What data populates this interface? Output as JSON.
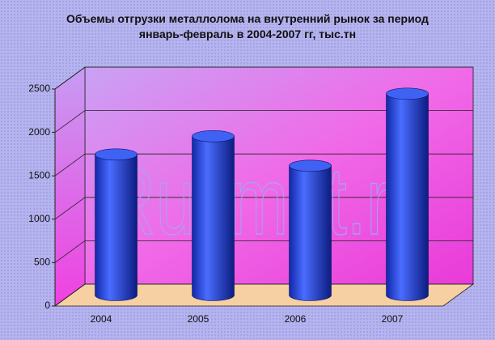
{
  "chart_data": {
    "type": "bar3d",
    "title": "Объемы отгрузки металлолома на внутренний рынок за период январь-февраль в 2004-2007 гг, тыс.тн",
    "watermark": "Rusmet.ru",
    "categories": [
      "2004",
      "2005",
      "2006",
      "2007"
    ],
    "values": [
      1620,
      1830,
      1490,
      2320
    ],
    "color": "#2a48e0",
    "ylim": [
      0,
      2500
    ],
    "yticks": [
      0,
      500,
      1000,
      1500,
      2000,
      2500
    ],
    "grid": true
  }
}
